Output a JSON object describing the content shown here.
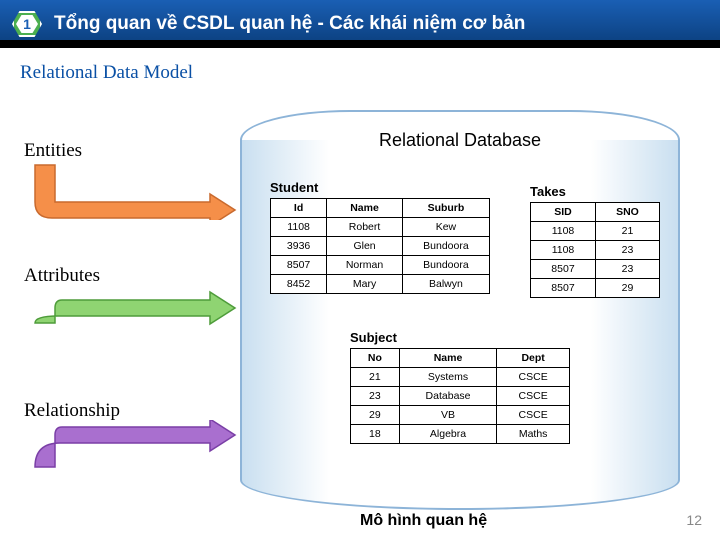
{
  "header": {
    "badge_number": "1",
    "title": "Tổng quan về CSDL quan hệ - Các khái niệm cơ bản",
    "badge_bg": "#4caf50",
    "bg_gradient_top": "#1a5fb4",
    "bg_gradient_bottom": "#0a3d7a"
  },
  "section_title": "Relational Data Model",
  "labels": {
    "entities": "Entities",
    "attributes": "Attributes",
    "relationship": "Relationship"
  },
  "arrows": {
    "entities": {
      "fill": "#f58f49",
      "stroke": "#c96a2e"
    },
    "attributes": {
      "fill": "#8fd472",
      "stroke": "#4e9c3a"
    },
    "relationship": {
      "fill": "#a96fcf",
      "stroke": "#7a3fa6"
    }
  },
  "database": {
    "title": "Relational Database",
    "cylinder_stroke": "#8db4d8",
    "body_tint": "#c9dff0",
    "student": {
      "caption": "Student",
      "columns": [
        "Id",
        "Name",
        "Suburb"
      ],
      "rows": [
        [
          "1108",
          "Robert",
          "Kew"
        ],
        [
          "3936",
          "Glen",
          "Bundoora"
        ],
        [
          "8507",
          "Norman",
          "Bundoora"
        ],
        [
          "8452",
          "Mary",
          "Balwyn"
        ]
      ]
    },
    "takes": {
      "caption": "Takes",
      "columns": [
        "SID",
        "SNO"
      ],
      "rows": [
        [
          "1108",
          "21"
        ],
        [
          "1108",
          "23"
        ],
        [
          "8507",
          "23"
        ],
        [
          "8507",
          "29"
        ]
      ]
    },
    "subject": {
      "caption": "Subject",
      "columns": [
        "No",
        "Name",
        "Dept"
      ],
      "rows": [
        [
          "21",
          "Systems",
          "CSCE"
        ],
        [
          "23",
          "Database",
          "CSCE"
        ],
        [
          "29",
          "VB",
          "CSCE"
        ],
        [
          "18",
          "Algebra",
          "Maths"
        ]
      ]
    }
  },
  "footer": {
    "label": "Mô hình quan hệ",
    "page": "12"
  },
  "colors": {
    "section_title": "#0a50a5",
    "page_num": "#888888"
  },
  "fontsize": {
    "header_title": 19,
    "section_title": 19,
    "labels": 19,
    "db_title": 18,
    "table": 10.5,
    "caption": 13,
    "footer": 16,
    "page": 14
  }
}
